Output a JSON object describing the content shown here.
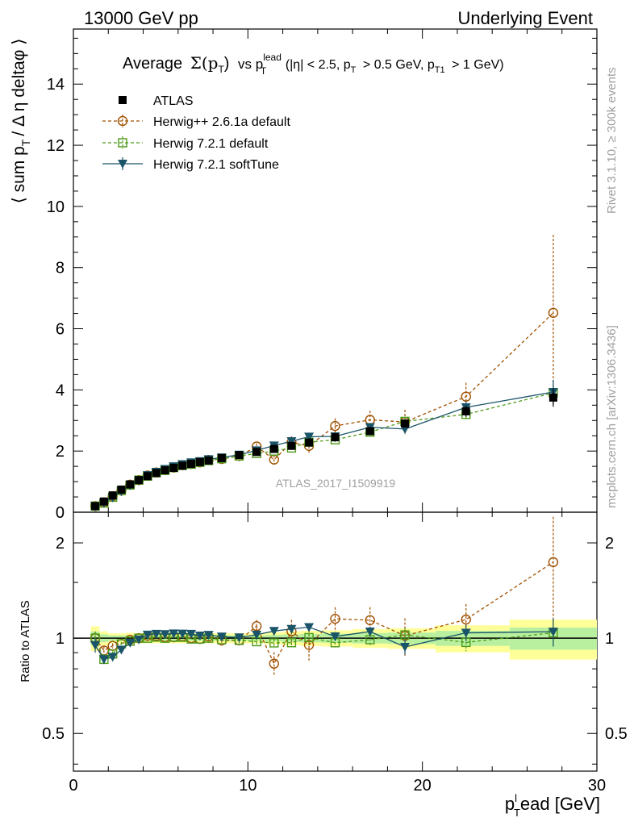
{
  "header": {
    "left": "13000 GeV pp",
    "right": "Underlying Event"
  },
  "side_labels": {
    "rivet": "Rivet 3.1.10, ≥ 300k events",
    "mcplots": "mcplots.cern.ch [arXiv:1306.3436]"
  },
  "chart_data": {
    "type": "scatter",
    "title": "Average Σ(pT) vs pT^lead (|η| < 2.5, pT > 0.5 GeV, pT1 > 1 GeV)",
    "title_parts": {
      "average": "Average",
      "sigma": "Σ(p",
      "sigma_sub": "T",
      "close": ")",
      "vs": "vs p",
      "lead_sup": "lead",
      "lead_sub": "T",
      "cuts1": "(|η| < 2.5, p",
      "cuts_sub1": "T",
      "cuts2": "> 0.5 GeV, p",
      "cuts_sub2": "T1",
      "cuts3": "> 1 GeV)"
    },
    "watermark": "ATLAS_2017_I1509919",
    "xlabel": "p_T^lead [GeV]",
    "xlabel_parts": {
      "p": "p",
      "sup": "l",
      "sub": "T",
      "rest": "ead [GeV]"
    },
    "ylabel": "⟨ sum p_T / Δη deltaφ ⟩",
    "ylabel_parts": {
      "a": "⟨ sum p",
      "sub": "T",
      "b": "/ Δ η deltaφ ⟩"
    },
    "ratio_ylabel": "Ratio to ATLAS",
    "xlim": [
      0,
      30
    ],
    "ylim": [
      0,
      15.8
    ],
    "ratio_ylim": [
      0.38,
      2.5
    ],
    "x_ticks": [
      "0",
      "10",
      "20",
      "30"
    ],
    "y_ticks": [
      "0",
      "2",
      "4",
      "6",
      "8",
      "10",
      "12",
      "14"
    ],
    "ratio_ticks": [
      "0.5",
      "1",
      "2"
    ],
    "x": [
      1.25,
      1.75,
      2.25,
      2.75,
      3.25,
      3.75,
      4.25,
      4.75,
      5.25,
      5.75,
      6.25,
      6.75,
      7.25,
      7.75,
      8.5,
      9.5,
      10.5,
      11.5,
      12.5,
      13.5,
      15,
      17,
      19,
      22.5,
      27.5
    ],
    "series": [
      {
        "name": "ATLAS",
        "marker": "square",
        "color": "#000000",
        "values": [
          0.2,
          0.35,
          0.55,
          0.74,
          0.91,
          1.05,
          1.18,
          1.28,
          1.37,
          1.45,
          1.52,
          1.58,
          1.64,
          1.69,
          1.77,
          1.87,
          1.97,
          2.07,
          2.17,
          2.28,
          2.45,
          2.65,
          2.9,
          3.3,
          3.75
        ],
        "errors": [
          0.01,
          0.01,
          0.01,
          0.01,
          0.02,
          0.02,
          0.02,
          0.02,
          0.02,
          0.02,
          0.02,
          0.02,
          0.02,
          0.02,
          0.03,
          0.03,
          0.04,
          0.05,
          0.06,
          0.07,
          0.08,
          0.1,
          0.12,
          0.18,
          0.3
        ]
      },
      {
        "name": "Herwig++ 2.6.1a default",
        "marker": "circle",
        "color": "#a05000",
        "dashed": true,
        "values": [
          0.2,
          0.32,
          0.52,
          0.71,
          0.9,
          1.05,
          1.2,
          1.3,
          1.38,
          1.46,
          1.54,
          1.58,
          1.63,
          1.71,
          1.74,
          1.84,
          2.15,
          1.72,
          2.28,
          2.17,
          2.82,
          3.02,
          2.95,
          3.78,
          6.52
        ],
        "errors": [
          0.01,
          0.01,
          0.01,
          0.01,
          0.01,
          0.01,
          0.01,
          0.02,
          0.02,
          0.02,
          0.02,
          0.02,
          0.02,
          0.03,
          0.03,
          0.05,
          0.1,
          0.15,
          0.2,
          0.25,
          0.25,
          0.3,
          0.4,
          0.45,
          2.55
        ]
      },
      {
        "name": "Herwig 7.2.1 default",
        "marker": "square-open",
        "color": "#4d9a1a",
        "dashed": true,
        "values": [
          0.2,
          0.3,
          0.49,
          0.71,
          0.89,
          1.05,
          1.18,
          1.29,
          1.37,
          1.46,
          1.53,
          1.57,
          1.63,
          1.69,
          1.75,
          1.84,
          1.92,
          2.0,
          2.1,
          2.29,
          2.37,
          2.62,
          2.97,
          3.2,
          3.9
        ],
        "errors": [
          0.01,
          0.01,
          0.01,
          0.01,
          0.01,
          0.01,
          0.01,
          0.02,
          0.02,
          0.02,
          0.02,
          0.02,
          0.02,
          0.03,
          0.03,
          0.04,
          0.05,
          0.05,
          0.06,
          0.07,
          0.08,
          0.1,
          0.15,
          0.2,
          0.4
        ]
      },
      {
        "name": "Herwig 7.2.1 softTune",
        "marker": "triangle-down",
        "color": "#1a5468",
        "values": [
          0.19,
          0.3,
          0.48,
          0.68,
          0.88,
          1.04,
          1.21,
          1.32,
          1.41,
          1.5,
          1.57,
          1.63,
          1.67,
          1.73,
          1.79,
          1.88,
          2.02,
          2.18,
          2.32,
          2.47,
          2.48,
          2.78,
          2.72,
          3.43,
          3.93
        ],
        "errors": [
          0.01,
          0.01,
          0.01,
          0.01,
          0.01,
          0.01,
          0.01,
          0.02,
          0.02,
          0.02,
          0.02,
          0.02,
          0.02,
          0.03,
          0.03,
          0.04,
          0.05,
          0.05,
          0.06,
          0.07,
          0.08,
          0.1,
          0.15,
          0.2,
          0.4
        ]
      }
    ]
  }
}
